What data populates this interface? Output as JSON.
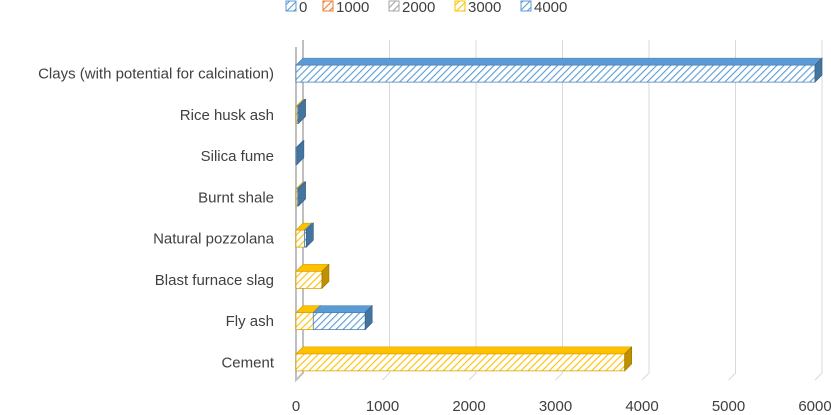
{
  "chart_data": {
    "type": "bar",
    "orientation": "horizontal",
    "stacked": true,
    "style": "3d-hatched",
    "categories": [
      "Clays (with potential for calcination)",
      "Rice husk ash",
      "Silica fume",
      "Burnt shale",
      "Natural pozzolana",
      "Blast furnace slag",
      "Fly ash",
      "Cement"
    ],
    "series": [
      {
        "name": "0",
        "color": "#5b9bd5",
        "values": [
          0,
          0,
          0,
          0,
          0,
          0,
          0,
          0
        ]
      },
      {
        "name": "1000",
        "color": "#ed7d31",
        "values": [
          0,
          0,
          0,
          0,
          0,
          0,
          0,
          0
        ]
      },
      {
        "name": "2000",
        "color": "#a5a5a5",
        "values": [
          0,
          0,
          0,
          0,
          0,
          0,
          0,
          0
        ]
      },
      {
        "name": "3000",
        "color": "#ffc000",
        "values": [
          0,
          15,
          0,
          15,
          100,
          300,
          200,
          3800
        ]
      },
      {
        "name": "4000",
        "color": "#5b9bd5",
        "values": [
          6000,
          15,
          10,
          15,
          20,
          0,
          600,
          0
        ]
      }
    ],
    "xticks": [
      "0",
      "1000",
      "2000",
      "3000",
      "4000",
      "5000",
      "6000"
    ],
    "xlim": [
      0,
      6000
    ],
    "grid": "vertical",
    "legend": "top"
  }
}
